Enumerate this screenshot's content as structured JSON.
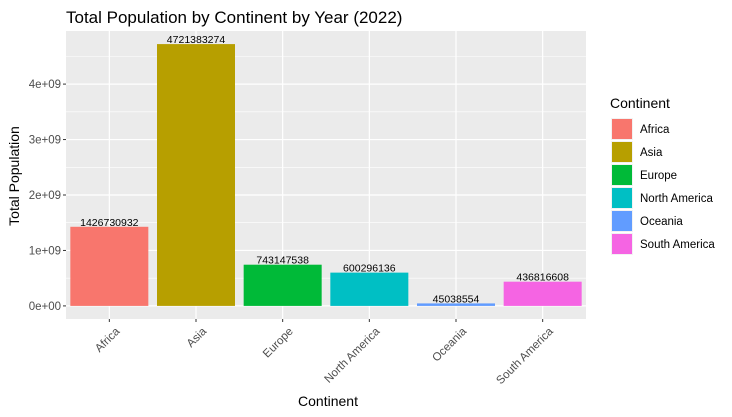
{
  "chart_data": {
    "type": "bar",
    "title": "Total Population by Continent by Year (2022)",
    "xlabel": "Continent",
    "ylabel": "Total Population",
    "categories": [
      "Africa",
      "Asia",
      "Europe",
      "North America",
      "Oceania",
      "South America"
    ],
    "values": [
      1426730932,
      4721383274,
      743147538,
      600296136,
      45038554,
      436816608
    ],
    "data_labels": [
      "1426730932",
      "4721383274",
      "743147538",
      "600296136",
      "45038554",
      "436816608"
    ],
    "colors": [
      "#F8766D",
      "#B79F00",
      "#00BA38",
      "#00BFC4",
      "#619CFF",
      "#F564E3"
    ],
    "y_ticks": [
      0,
      1000000000,
      2000000000,
      3000000000,
      4000000000
    ],
    "y_tick_labels": [
      "0e+00",
      "1e+09",
      "2e+09",
      "3e+09",
      "4e+09"
    ],
    "ylim": [
      -236069163,
      4957452438
    ],
    "grid": true,
    "panel_color": "#EBEBEB",
    "legend": {
      "title": "Continent",
      "position": "right",
      "entries": [
        "Africa",
        "Asia",
        "Europe",
        "North America",
        "Oceania",
        "South America"
      ]
    }
  }
}
